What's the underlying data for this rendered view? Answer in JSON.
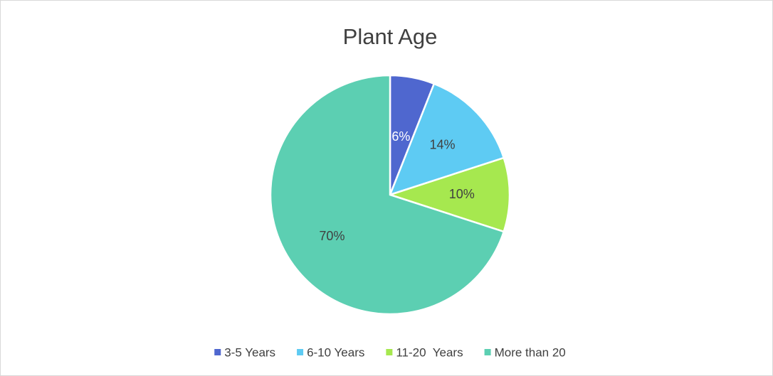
{
  "chart_data": {
    "type": "pie",
    "title": "Plant Age",
    "categories": [
      "3-5 Years",
      "6-10 Years",
      "11-20  Years",
      "More than 20"
    ],
    "values": [
      6,
      14,
      10,
      70
    ],
    "value_labels": [
      "6%",
      "14%",
      "10%",
      "70%"
    ],
    "colors": [
      "#4f67cf",
      "#5ecbf3",
      "#a6e84f",
      "#5ccfb2"
    ],
    "legend": "bottom"
  }
}
